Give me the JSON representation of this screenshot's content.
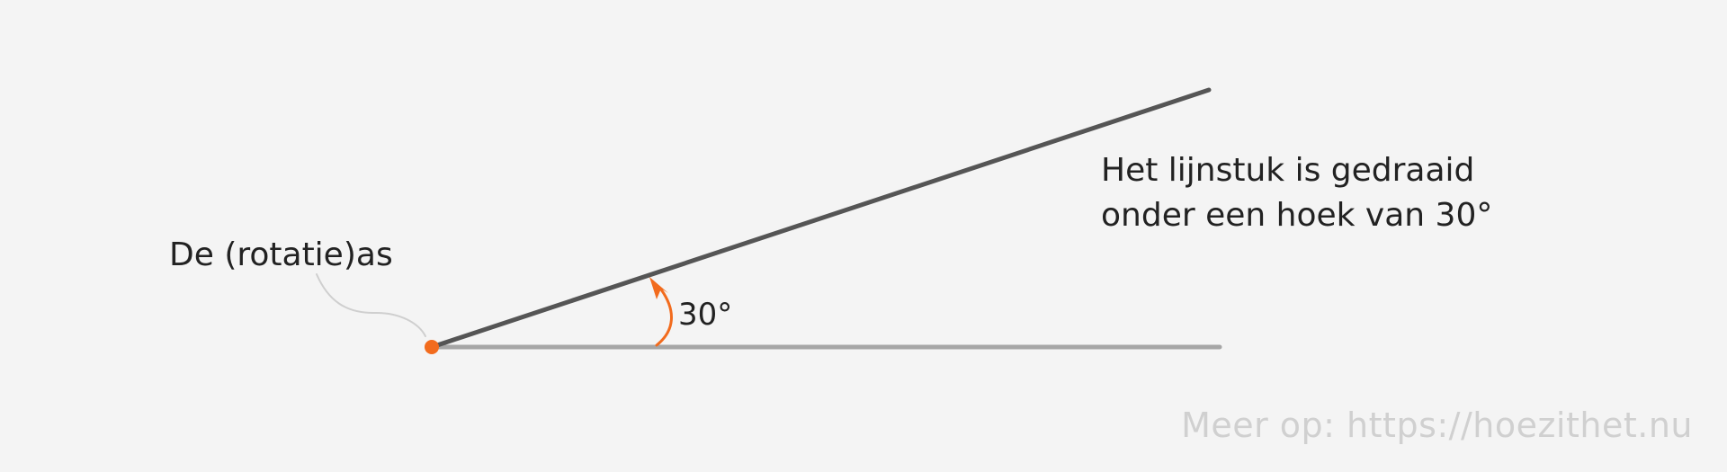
{
  "diagram": {
    "axis_label": "De (rotatie)as",
    "description_line_1": "Het lijnstuk is gedraaid",
    "description_line_2": "onder een hoek van 30°",
    "angle_label": "30°",
    "angle_degrees": 30,
    "watermark": "Meer op: https://hoezithet.nu"
  },
  "colors": {
    "background": "#f4f4f4",
    "original_segment": "#a6a6a6",
    "rotated_segment": "#555555",
    "accent": "#f26b1d",
    "pointer_line": "#cfcfcf",
    "text": "#222222",
    "watermark": "#d0d0d0"
  }
}
